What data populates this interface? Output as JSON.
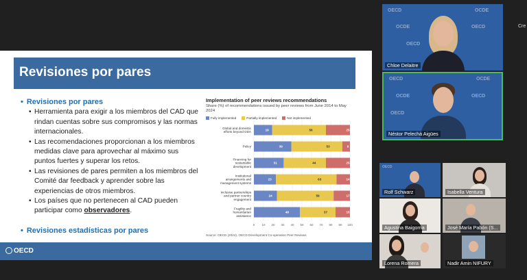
{
  "slide": {
    "title": "Revisiones por pares",
    "bullet1_head": "Revisiones por pares",
    "items": [
      "Herramienta para exigir a los miembros del CAD que rindan cuentas sobre sus compromisos y las normas internacionales.",
      "Las recomendaciones proporcionan a los miembros medidas clave para aprovechar al máximo sus puntos fuertes y superar los retos.",
      "Las revisiones de pares permiten a los miembros del Comité dar feedback y aprender sobre las experiencias de otros miembros."
    ],
    "item4_prefix": "Los países que no pertenecen al CAD pueden participar como ",
    "item4_bold": "observadores",
    "item4_suffix": ".",
    "bullet2_head": "Revisiones estadísticas por pares",
    "footer_logo": "OECD"
  },
  "chart_data": {
    "type": "bar",
    "title": "Implementation of peer reviews recommendations",
    "subtitle": "Share (%) of recommendations issued by peer reviews from June 2014 to May 2024",
    "categories": [
      "Global and domestic efforts beyond ODA",
      "Policy",
      "Financing for sustainable development",
      "Institutional arrangements and management systems",
      "Inclusive partnerships and partner country engagement",
      "Fragility and humanitarian assistance"
    ],
    "series": [
      {
        "name": "Fully implemented",
        "values": [
          19,
          39,
          31,
          23,
          24,
          48
        ]
      },
      {
        "name": "Partially implemented",
        "values": [
          56,
          53,
          44,
          63,
          59,
          37
        ]
      },
      {
        "name": "Not implemented",
        "values": [
          25,
          8,
          25,
          14,
          17,
          15
        ]
      }
    ],
    "colors": [
      "#6a86c4",
      "#e8c84e",
      "#cf6d6a"
    ],
    "xlim": [
      0,
      100
    ],
    "xticks": [
      0,
      10,
      20,
      30,
      40,
      50,
      60,
      70,
      80,
      90,
      100
    ],
    "stacked": true,
    "orientation": "horizontal",
    "source": "Source: OECD (2024), OECD Development Co-operation Peer Reviews"
  },
  "participants": {
    "p1": "Chloe Delaitre",
    "p2": "Néstor Pelechá Aigües",
    "p3": "Rolf Schwarz",
    "p4": "Isabella Ventura",
    "p5": "Agustina Baigorria",
    "p6": "José María Pabón (S...",
    "p7": "Lorena Romera",
    "p8": "Nadir Amin NIFURY"
  },
  "bg_brand": "OECD",
  "bg_brand_fr": "OCDE",
  "edge_label": "Cre"
}
